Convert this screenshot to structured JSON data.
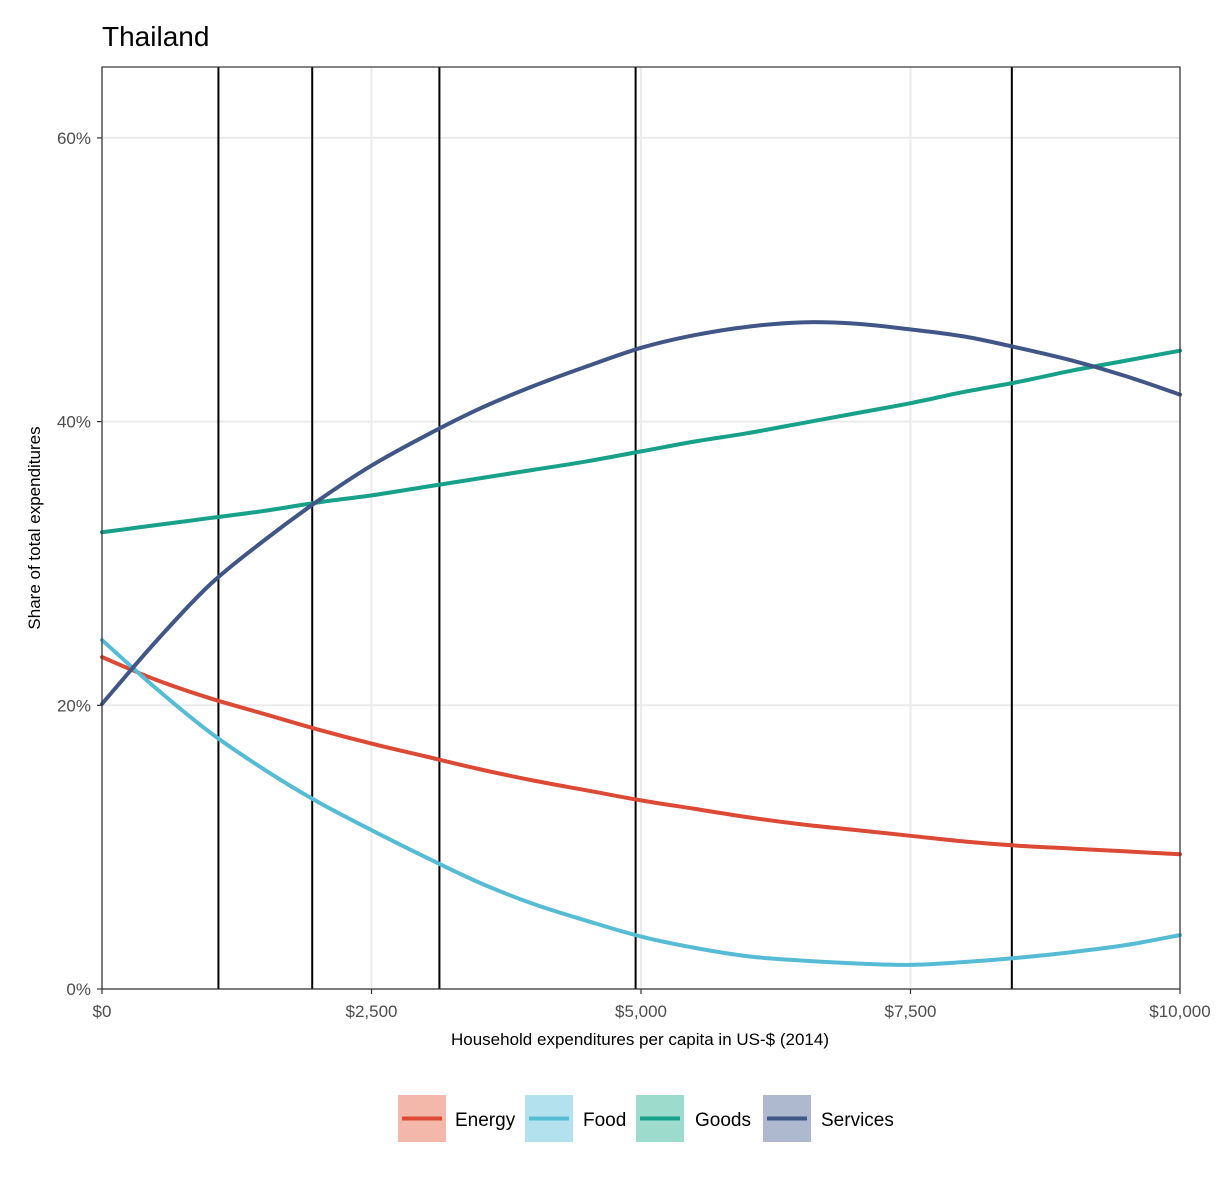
{
  "chart_data": {
    "type": "line",
    "title": "Thailand",
    "xlabel": "Household expenditures per capita in US-$ (2014)",
    "ylabel": "Share of total expenditures",
    "xlim": [
      0,
      10000
    ],
    "ylim": [
      0,
      0.65
    ],
    "x_ticks": [
      0,
      2500,
      5000,
      7500,
      10000
    ],
    "x_tick_labels": [
      "$0",
      "$2,500",
      "$5,000",
      "$7,500",
      "$10,000"
    ],
    "y_ticks": [
      0,
      0.2,
      0.4,
      0.6
    ],
    "y_tick_labels": [
      "0%",
      "20%",
      "40%",
      "60%"
    ],
    "grid": true,
    "legend_position": "bottom",
    "vertical_lines": [
      1080,
      1950,
      3130,
      4950,
      8440
    ],
    "series": [
      {
        "name": "Energy",
        "color": "#dc4a35",
        "fill_color": "#f4b8ab",
        "x": [
          0,
          500,
          1000,
          1500,
          2000,
          2500,
          3000,
          3500,
          4000,
          4500,
          5000,
          5500,
          6000,
          6500,
          7000,
          7500,
          8000,
          8500,
          9000,
          9500,
          10000
        ],
        "values": [
          0.234,
          0.218,
          0.205,
          0.194,
          0.183,
          0.173,
          0.164,
          0.155,
          0.147,
          0.14,
          0.133,
          0.127,
          0.121,
          0.116,
          0.112,
          0.108,
          0.104,
          0.101,
          0.099,
          0.097,
          0.095
        ]
      },
      {
        "name": "Food",
        "color": "#56bcd6",
        "fill_color": "#b3e2ee",
        "x": [
          0,
          500,
          1000,
          1500,
          2000,
          2500,
          3000,
          3500,
          4000,
          4500,
          5000,
          5500,
          6000,
          6500,
          7000,
          7500,
          8000,
          8500,
          9000,
          9500,
          10000
        ],
        "values": [
          0.246,
          0.212,
          0.181,
          0.155,
          0.132,
          0.112,
          0.093,
          0.075,
          0.06,
          0.048,
          0.037,
          0.029,
          0.023,
          0.02,
          0.018,
          0.017,
          0.019,
          0.022,
          0.026,
          0.031,
          0.038
        ]
      },
      {
        "name": "Goods",
        "color": "#17a08a",
        "fill_color": "#9ddbcd",
        "x": [
          0,
          500,
          1000,
          1500,
          2000,
          2500,
          3000,
          3500,
          4000,
          4500,
          5000,
          5500,
          6000,
          6500,
          7000,
          7500,
          8000,
          8500,
          9000,
          9500,
          10000
        ],
        "values": [
          0.322,
          0.327,
          0.332,
          0.337,
          0.343,
          0.348,
          0.354,
          0.36,
          0.366,
          0.372,
          0.379,
          0.386,
          0.392,
          0.399,
          0.406,
          0.413,
          0.421,
          0.428,
          0.436,
          0.443,
          0.45
        ]
      },
      {
        "name": "Services",
        "color": "#3f5687",
        "fill_color": "#aeb8cf",
        "x": [
          0,
          500,
          1000,
          1500,
          2000,
          2500,
          3000,
          3500,
          4000,
          4500,
          5000,
          5500,
          6000,
          6500,
          7000,
          7500,
          8000,
          8500,
          9000,
          9500,
          10000
        ],
        "values": [
          0.201,
          0.245,
          0.285,
          0.316,
          0.344,
          0.369,
          0.39,
          0.409,
          0.425,
          0.439,
          0.452,
          0.461,
          0.467,
          0.47,
          0.469,
          0.465,
          0.46,
          0.452,
          0.443,
          0.432,
          0.419
        ]
      }
    ]
  }
}
